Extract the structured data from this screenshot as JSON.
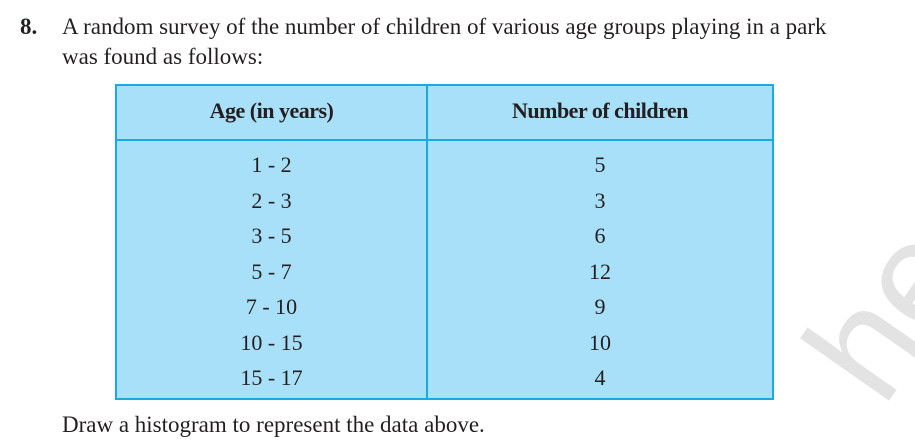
{
  "question": {
    "number": "8.",
    "line1": "A random survey of the number of children of various age groups playing in a park",
    "line2": "was found as follows:",
    "instruction": "Draw a histogram to represent the data above."
  },
  "table": {
    "headers": [
      "Age (in years)",
      "Number of children"
    ],
    "rows": [
      [
        "1 - 2",
        "5"
      ],
      [
        "2 - 3",
        "3"
      ],
      [
        "3 - 5",
        "6"
      ],
      [
        "5 - 7",
        "12"
      ],
      [
        "7 - 10",
        "9"
      ],
      [
        "10 - 15",
        "10"
      ],
      [
        "15 - 17",
        "4"
      ]
    ],
    "fill_color": "#a9e0f9",
    "border_color": "#1aa9e0"
  },
  "watermark": "hed"
}
